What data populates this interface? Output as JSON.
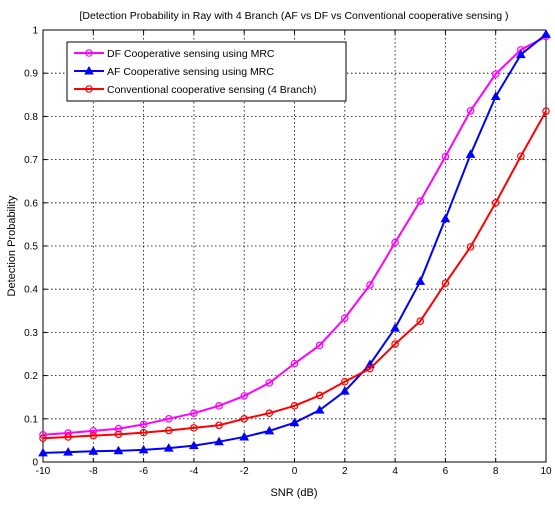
{
  "chart_data": {
    "type": "line",
    "title": "[Detection Probability in Ray with 4 Branch (AF vs DF vs Conventional cooperative sensing )",
    "xlabel": "SNR (dB)",
    "ylabel": "Detection Probability",
    "xlim": [
      -10,
      10
    ],
    "ylim": [
      0,
      1
    ],
    "xticks": [
      -10,
      -8,
      -6,
      -4,
      -2,
      0,
      2,
      4,
      6,
      8,
      10
    ],
    "yticks": [
      0,
      0.1,
      0.2,
      0.3,
      0.4,
      0.5,
      0.6,
      0.7,
      0.8,
      0.9,
      1
    ],
    "grid": true,
    "legend_position": "top-left",
    "x": [
      -10,
      -9,
      -8,
      -7,
      -6,
      -5,
      -4,
      -3,
      -2,
      -1,
      0,
      1,
      2,
      3,
      4,
      5,
      6,
      7,
      8,
      9,
      10
    ],
    "series": [
      {
        "name": "DF Cooperative sensing using MRC",
        "color": "#ff00ff",
        "marker": "circle",
        "values": [
          0.063,
          0.067,
          0.072,
          0.077,
          0.087,
          0.1,
          0.113,
          0.13,
          0.153,
          0.183,
          0.228,
          0.27,
          0.333,
          0.41,
          0.508,
          0.604,
          0.707,
          0.813,
          0.898,
          0.954,
          0.985
        ]
      },
      {
        "name": "AF Cooperative sensing using MRC",
        "color": "#0000ff",
        "marker": "triangle",
        "values": [
          0.021,
          0.023,
          0.025,
          0.026,
          0.028,
          0.032,
          0.038,
          0.047,
          0.058,
          0.072,
          0.091,
          0.12,
          0.164,
          0.226,
          0.31,
          0.418,
          0.563,
          0.712,
          0.846,
          0.943,
          0.99
        ]
      },
      {
        "name": "Conventional cooperative sensing (4 Branch)",
        "color": "#ff0000",
        "marker": "circle",
        "values": [
          0.055,
          0.058,
          0.061,
          0.064,
          0.068,
          0.073,
          0.079,
          0.085,
          0.1,
          0.113,
          0.13,
          0.154,
          0.186,
          0.216,
          0.273,
          0.326,
          0.414,
          0.498,
          0.6,
          0.708,
          0.812
        ]
      }
    ]
  }
}
